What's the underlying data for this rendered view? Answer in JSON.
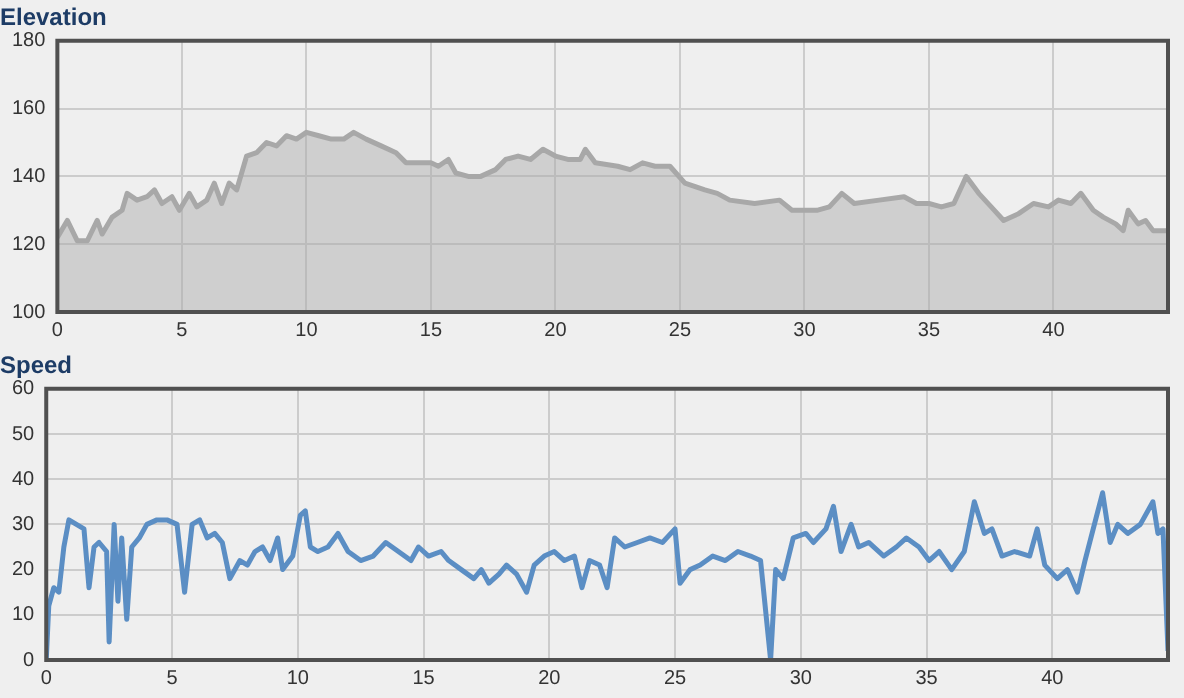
{
  "chart_data": [
    {
      "type": "area",
      "title": "Elevation",
      "xlim": [
        0,
        44.6
      ],
      "xticks": [
        0,
        5,
        10,
        15,
        20,
        25,
        30,
        35,
        40
      ],
      "ylim": [
        100,
        180
      ],
      "yticks": [
        100,
        120,
        140,
        160,
        180
      ],
      "grid": true,
      "legend": false,
      "series": [
        {
          "color": "#a8a8a8",
          "x": [
            0,
            0.4,
            0.8,
            1.2,
            1.6,
            1.8,
            2.2,
            2.6,
            2.8,
            3.2,
            3.6,
            3.9,
            4.2,
            4.6,
            4.9,
            5.3,
            5.6,
            6.0,
            6.3,
            6.6,
            6.9,
            7.2,
            7.6,
            8.0,
            8.4,
            8.8,
            9.2,
            9.6,
            10,
            10.5,
            11,
            11.5,
            11.9,
            12.4,
            13,
            13.6,
            14,
            14.5,
            15,
            15.3,
            15.7,
            16,
            16.5,
            17,
            17.6,
            18,
            18.5,
            19,
            19.5,
            20,
            20.5,
            21,
            21.2,
            21.6,
            22.5,
            23,
            23.5,
            24,
            24.6,
            25.2,
            26,
            26.5,
            27,
            28,
            29,
            29.5,
            30.5,
            31,
            31.5,
            32,
            33,
            34,
            34.5,
            35,
            35.5,
            36,
            36.5,
            37,
            37.5,
            38,
            38.6,
            39.2,
            39.8,
            40.2,
            40.7,
            41.1,
            41.6,
            42,
            42.5,
            42.8,
            43,
            43.4,
            43.7,
            44,
            44.6
          ],
          "values": [
            122,
            127,
            121,
            121,
            127,
            123,
            128,
            130,
            135,
            133,
            134,
            136,
            132,
            134,
            130,
            135,
            131,
            133,
            138,
            132,
            138,
            136,
            146,
            147,
            150,
            149,
            152,
            151,
            153,
            152,
            151,
            151,
            153,
            151,
            149,
            147,
            144,
            144,
            144,
            143,
            145,
            141,
            140,
            140,
            142,
            145,
            146,
            145,
            148,
            146,
            145,
            145,
            148,
            144,
            143,
            142,
            144,
            143,
            143,
            138,
            136,
            135,
            133,
            132,
            133,
            130,
            130,
            131,
            135,
            132,
            133,
            134,
            132,
            132,
            131,
            132,
            140,
            135,
            131,
            127,
            129,
            132,
            131,
            133,
            132,
            135,
            130,
            128,
            126,
            124,
            130,
            126,
            127,
            124,
            124
          ]
        }
      ]
    },
    {
      "type": "line",
      "title": "Speed",
      "xlim": [
        0,
        44.6
      ],
      "xticks": [
        0,
        5,
        10,
        15,
        20,
        25,
        30,
        35,
        40
      ],
      "ylim": [
        0,
        60
      ],
      "yticks": [
        0,
        10,
        20,
        30,
        40,
        50,
        60
      ],
      "grid": true,
      "legend": false,
      "series": [
        {
          "color": "#5b8ec4",
          "x": [
            0,
            0.1,
            0.3,
            0.5,
            0.7,
            0.9,
            1.2,
            1.5,
            1.7,
            1.9,
            2.1,
            2.4,
            2.5,
            2.7,
            2.85,
            3.0,
            3.2,
            3.4,
            3.7,
            4.0,
            4.4,
            4.8,
            5.2,
            5.5,
            5.8,
            6.1,
            6.4,
            6.7,
            7.0,
            7.3,
            7.7,
            8.0,
            8.3,
            8.6,
            8.9,
            9.2,
            9.4,
            9.8,
            10.1,
            10.3,
            10.5,
            10.8,
            11.2,
            11.6,
            12.0,
            12.5,
            13.0,
            13.5,
            14.0,
            14.5,
            14.8,
            15.2,
            15.7,
            16.0,
            16.5,
            17.0,
            17.3,
            17.6,
            18.0,
            18.3,
            18.7,
            19.1,
            19.4,
            19.8,
            20.2,
            20.6,
            21.0,
            21.3,
            21.6,
            22.0,
            22.3,
            22.6,
            23.0,
            23.5,
            24.0,
            24.5,
            25.0,
            25.2,
            25.6,
            26.0,
            26.5,
            27.0,
            27.5,
            28.0,
            28.4,
            28.8,
            29.0,
            29.3,
            29.7,
            30.2,
            30.5,
            31.0,
            31.3,
            31.6,
            32.0,
            32.3,
            32.7,
            33.3,
            33.8,
            34.2,
            34.7,
            35.1,
            35.5,
            36.0,
            36.5,
            36.9,
            37.3,
            37.6,
            38.0,
            38.5,
            39.1,
            39.4,
            39.7,
            40.2,
            40.6,
            41.0,
            41.3,
            42.0,
            42.3,
            42.6,
            43.0,
            43.5,
            44.0,
            44.2,
            44.4,
            44.6
          ],
          "values": [
            0,
            12,
            16,
            15,
            25,
            31,
            30,
            29,
            16,
            25,
            26,
            24,
            4,
            30,
            13,
            27,
            9,
            25,
            27,
            30,
            31,
            31,
            30,
            15,
            30,
            31,
            27,
            28,
            26,
            18,
            22,
            21,
            24,
            25,
            22,
            27,
            20,
            23,
            32,
            33,
            25,
            24,
            25,
            28,
            24,
            22,
            23,
            26,
            24,
            22,
            25,
            23,
            24,
            22,
            20,
            18,
            20,
            17,
            19,
            21,
            19,
            15,
            21,
            23,
            24,
            22,
            23,
            16,
            22,
            21,
            16,
            27,
            25,
            26,
            27,
            26,
            29,
            17,
            20,
            21,
            23,
            22,
            24,
            23,
            22,
            0,
            20,
            18,
            27,
            28,
            26,
            29,
            34,
            24,
            30,
            25,
            26,
            23,
            25,
            27,
            25,
            22,
            24,
            20,
            24,
            35,
            28,
            29,
            23,
            24,
            23,
            29,
            21,
            18,
            20,
            15,
            22,
            37,
            26,
            30,
            28,
            30,
            35,
            28,
            29,
            2
          ]
        }
      ]
    }
  ]
}
